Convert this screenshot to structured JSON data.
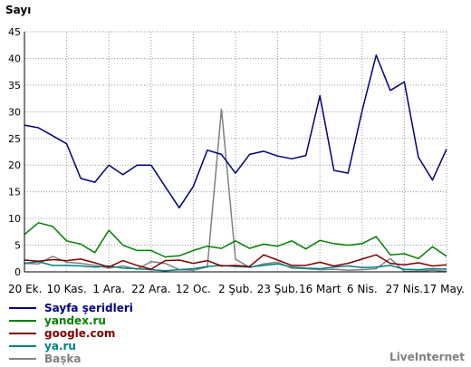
{
  "chart_data": {
    "type": "line",
    "title": "",
    "ylabel": "Sayı",
    "xlabel": "",
    "ylim": [
      0,
      45
    ],
    "yticks": [
      0,
      5,
      10,
      15,
      20,
      25,
      30,
      35,
      40,
      45
    ],
    "grid": true,
    "legend_placement": "bottom-left",
    "x_tick_labels": [
      "20 Ek.",
      "10 Kas.",
      "1 Ara.",
      "22 Ara.",
      "12 Oc.",
      "2 Şub.",
      "23 Şub.",
      "16 Mart",
      "6 Nis.",
      "27 Nis.",
      "17 May."
    ],
    "series": [
      {
        "name": "Sayfa şeridleri",
        "color": "#000080",
        "values": [
          27.5,
          27,
          25.5,
          24,
          17.5,
          16.8,
          20,
          18.2,
          20,
          20,
          16,
          12,
          16,
          22.8,
          22,
          18.5,
          22,
          22.6,
          21.7,
          21.2,
          21.8,
          33,
          19,
          18.5,
          30.2,
          40.6,
          34,
          35.6,
          21.5,
          17.2,
          23
        ]
      },
      {
        "name": "yandex.ru",
        "color": "#008000",
        "values": [
          7,
          9.2,
          8.5,
          5.8,
          5.2,
          3.6,
          7.8,
          5,
          4,
          4,
          2.8,
          3,
          4,
          4.8,
          4.4,
          5.8,
          4.4,
          5.2,
          4.8,
          5.8,
          4.3,
          5.9,
          5.3,
          5,
          5.3,
          6.6,
          3.2,
          3.4,
          2.5,
          4.7,
          2.9
        ]
      },
      {
        "name": "google.com",
        "color": "#800000",
        "values": [
          2.2,
          2,
          2.3,
          2.1,
          2.4,
          1.7,
          0.9,
          2.1,
          1.2,
          0.5,
          2.1,
          2.2,
          1.6,
          2.1,
          1.1,
          1.2,
          1,
          3.2,
          2.2,
          1.2,
          1.2,
          1.8,
          1.1,
          1.6,
          2.4,
          3.2,
          1.6,
          1.3,
          1.7,
          1.1,
          1.3
        ]
      },
      {
        "name": "ya.ru",
        "color": "#008080",
        "values": [
          1.6,
          1.9,
          1.2,
          1.2,
          1.1,
          0.9,
          1.1,
          0.7,
          0.6,
          0.4,
          0.2,
          0.4,
          0.6,
          1,
          1.2,
          1,
          0.9,
          1.2,
          1.5,
          0.9,
          0.7,
          0.6,
          0.9,
          1.1,
          0.8,
          0.9,
          1.2,
          0.5,
          0.4,
          0.6,
          0.5
        ]
      },
      {
        "name": "Başka",
        "color": "#808080",
        "values": [
          1.6,
          1.5,
          2.9,
          1.8,
          1.6,
          1.2,
          0.7,
          1.1,
          0.5,
          1.9,
          1.6,
          0.4,
          0.3,
          0.9,
          30.5,
          2.4,
          0.8,
          1.5,
          1.8,
          0.7,
          0.6,
          0.4,
          0.5,
          0.3,
          0.4,
          0.6,
          2.5,
          0.1,
          0.1,
          0.3,
          0.1
        ]
      }
    ]
  },
  "brand": "LiveInternet"
}
